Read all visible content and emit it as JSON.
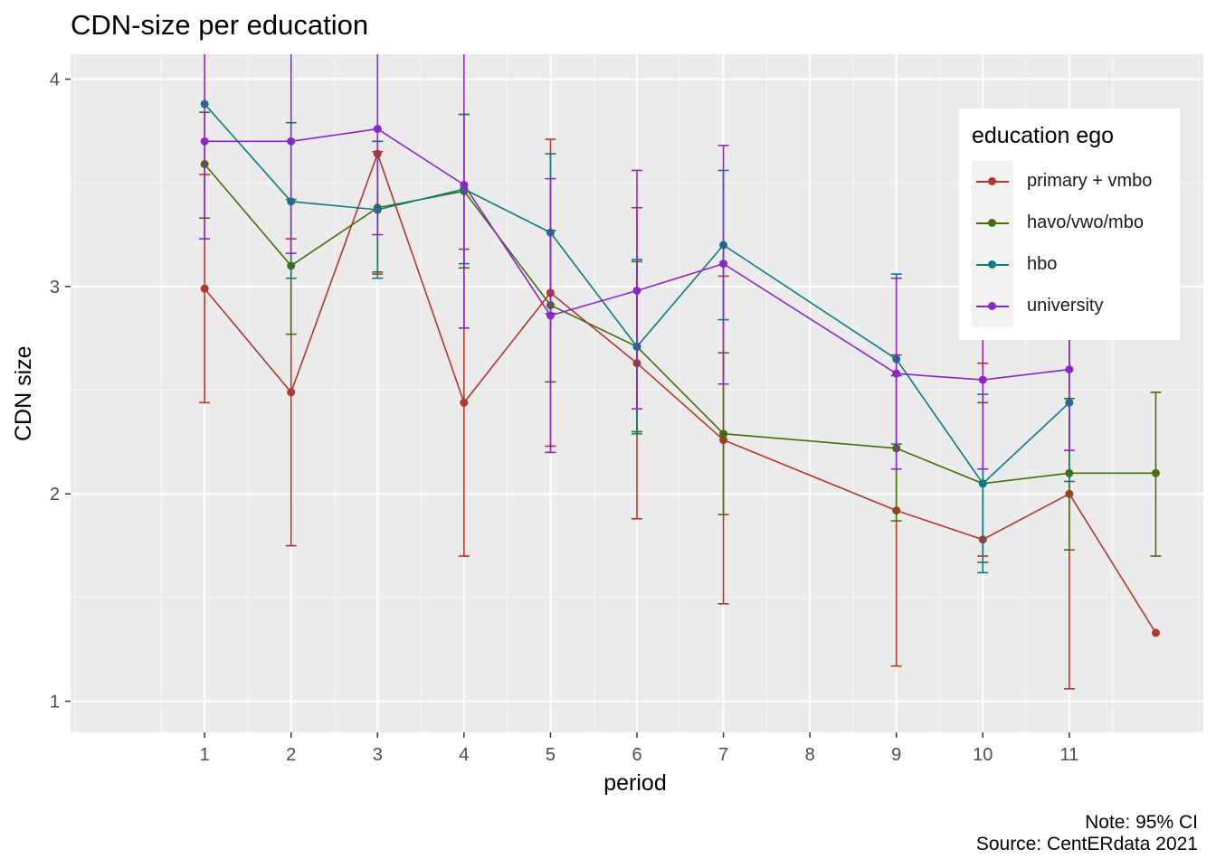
{
  "title": "CDN-size per education",
  "caption": [
    "Note: 95% CI",
    "Source: CentERdata 2021"
  ],
  "colors": {
    "panel": "#ebebeb",
    "grid_major": "#ffffff",
    "grid_minor": "#f5f5f5",
    "axis_text": "#4d4d4d"
  },
  "chart_data": {
    "type": "line",
    "title": "CDN-size per education",
    "xlabel": "period",
    "ylabel": "CDN size",
    "x_ticks": [
      1,
      2,
      3,
      4,
      5,
      6,
      7,
      8,
      9,
      10,
      11
    ],
    "y_ticks": [
      1,
      2,
      3,
      4
    ],
    "xlim": [
      -0.55,
      12.55
    ],
    "ylim": [
      0.85,
      4.12
    ],
    "grid": true,
    "legend": {
      "title": "education ego",
      "placement": "top-right"
    },
    "series": [
      {
        "name": "primary + vmbo",
        "color": "#b2372b",
        "points": [
          {
            "x": 1,
            "y": 2.99,
            "lo": 2.44,
            "hi": 3.54
          },
          {
            "x": 2,
            "y": 2.49,
            "lo": 1.75,
            "hi": 3.23
          },
          {
            "x": 3,
            "y": 3.64,
            "lo": 3.06,
            "hi": 3.65
          },
          {
            "x": 4,
            "y": 2.44,
            "lo": 1.7,
            "hi": 3.18
          },
          {
            "x": 5,
            "y": 2.97,
            "lo": 2.23,
            "hi": 3.71
          },
          {
            "x": 6,
            "y": 2.63,
            "lo": 1.88,
            "hi": 3.38
          },
          {
            "x": 7,
            "y": 2.26,
            "lo": 1.47,
            "hi": 3.05
          },
          {
            "x": 9,
            "y": 1.92,
            "lo": 1.17,
            "hi": 2.67
          },
          {
            "x": 10,
            "y": 1.78,
            "lo": 1.7,
            "hi": 2.63
          },
          {
            "x": 11,
            "y": 2.0,
            "lo": 1.06,
            "hi": 2.94
          },
          {
            "x": 12,
            "y": 1.33
          }
        ]
      },
      {
        "name": "havo/vwo/mbo",
        "color": "#456e0a",
        "points": [
          {
            "x": 1,
            "y": 3.59,
            "lo": 3.33,
            "hi": 3.84
          },
          {
            "x": 2,
            "y": 3.1,
            "lo": 2.77,
            "hi": 3.42
          },
          {
            "x": 3,
            "y": 3.38,
            "lo": 3.07,
            "hi": 3.7
          },
          {
            "x": 4,
            "y": 3.46,
            "lo": 3.09,
            "hi": 3.83
          },
          {
            "x": 5,
            "y": 2.91,
            "lo": 2.54,
            "hi": 3.27
          },
          {
            "x": 6,
            "y": 2.71,
            "lo": 2.3,
            "hi": 3.12
          },
          {
            "x": 7,
            "y": 2.29,
            "lo": 1.9,
            "hi": 2.68
          },
          {
            "x": 9,
            "y": 2.22,
            "lo": 1.87,
            "hi": 2.57
          },
          {
            "x": 10,
            "y": 2.05,
            "lo": 1.67,
            "hi": 2.44
          },
          {
            "x": 11,
            "y": 2.1,
            "lo": 1.73,
            "hi": 2.46
          },
          {
            "x": 12,
            "y": 2.1,
            "lo": 1.7,
            "hi": 2.49
          }
        ]
      },
      {
        "name": "hbo",
        "color": "#0c7a7f",
        "points": [
          {
            "x": 1,
            "y": 3.88
          },
          {
            "x": 2,
            "y": 3.41,
            "lo": 3.04,
            "hi": 3.79
          },
          {
            "x": 3,
            "y": 3.37,
            "lo": 3.04,
            "hi": 3.7
          },
          {
            "x": 4,
            "y": 3.47,
            "lo": 3.11,
            "hi": 3.83
          },
          {
            "x": 5,
            "y": 3.26,
            "lo": 2.87,
            "hi": 3.64
          },
          {
            "x": 6,
            "y": 2.71,
            "lo": 2.29,
            "hi": 3.13
          },
          {
            "x": 7,
            "y": 3.2,
            "lo": 2.84,
            "hi": 3.56
          },
          {
            "x": 9,
            "y": 2.65,
            "lo": 2.24,
            "hi": 3.06
          },
          {
            "x": 10,
            "y": 2.05,
            "lo": 1.62,
            "hi": 2.48
          },
          {
            "x": 11,
            "y": 2.44,
            "lo": 2.06,
            "hi": 2.82
          }
        ]
      },
      {
        "name": "university",
        "color": "#8b26c9",
        "points": [
          {
            "x": 1,
            "y": 3.7,
            "lo": 3.23,
            "hi": 4.17
          },
          {
            "x": 2,
            "y": 3.7,
            "lo": 3.16,
            "hi": 4.24
          },
          {
            "x": 3,
            "y": 3.76,
            "lo": 3.25,
            "hi": 4.27
          },
          {
            "x": 4,
            "y": 3.49,
            "lo": 2.8,
            "hi": 4.18
          },
          {
            "x": 5,
            "y": 2.86,
            "lo": 2.2,
            "hi": 3.52
          },
          {
            "x": 6,
            "y": 2.98,
            "lo": 2.41,
            "hi": 3.56
          },
          {
            "x": 7,
            "y": 3.11,
            "lo": 2.53,
            "hi": 3.68
          },
          {
            "x": 9,
            "y": 2.58,
            "lo": 2.12,
            "hi": 3.04
          },
          {
            "x": 10,
            "y": 2.55,
            "lo": 2.12,
            "hi": 2.98
          },
          {
            "x": 11,
            "y": 2.6,
            "lo": 2.21,
            "hi": 2.99
          }
        ]
      }
    ]
  }
}
